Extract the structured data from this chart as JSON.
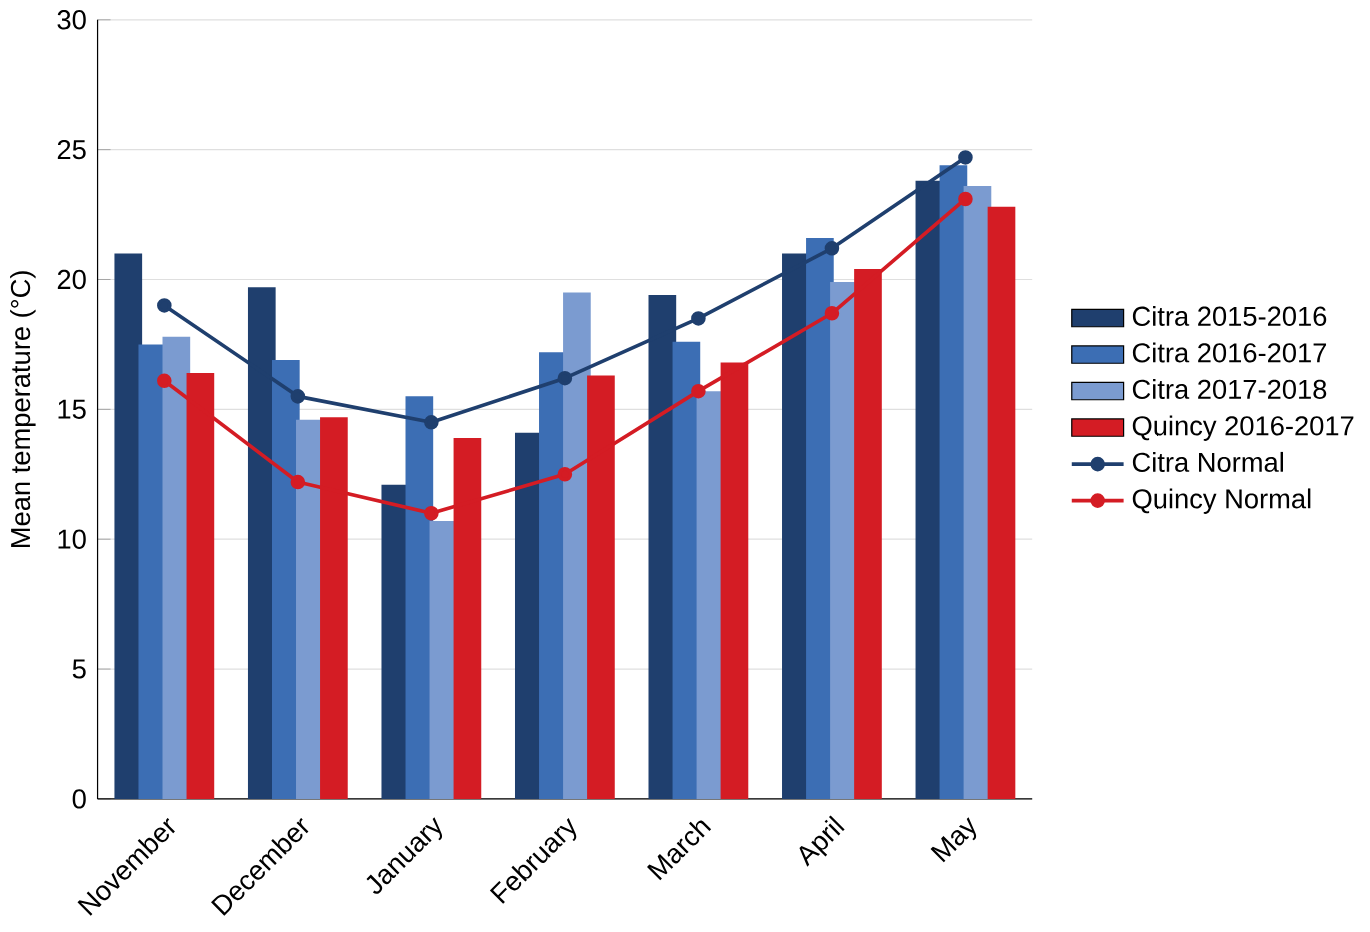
{
  "chart_data": {
    "type": "bar",
    "ylabel": "Mean temperature (°C)",
    "categories": [
      "November",
      "December",
      "January",
      "February",
      "March",
      "April",
      "May"
    ],
    "ylim": [
      0,
      30
    ],
    "yticks": [
      0,
      5,
      10,
      15,
      20,
      25,
      30
    ],
    "grid": "y",
    "legend": "right",
    "marker": "circle",
    "series": [
      {
        "name": "Citra 2015-2016",
        "color": "#1f3f6e",
        "values": [
          21.0,
          19.7,
          12.1,
          14.1,
          19.4,
          21.0,
          23.8
        ]
      },
      {
        "name": "Citra 2016-2017",
        "color": "#3c6eb4",
        "values": [
          17.5,
          16.9,
          15.5,
          17.2,
          17.6,
          21.6,
          24.4
        ]
      },
      {
        "name": "Citra 2017-2018",
        "color": "#7b9bd0",
        "values": [
          17.8,
          14.6,
          10.7,
          19.5,
          15.7,
          19.9,
          23.6
        ]
      },
      {
        "name": "Quincy 2016-2017",
        "color": "#d41c24",
        "values": [
          16.4,
          14.7,
          13.9,
          16.3,
          16.8,
          20.4,
          22.8
        ]
      },
      {
        "name": "Citra Normal",
        "type": "line",
        "color": "#1f3f6e",
        "values": [
          19.0,
          15.5,
          14.5,
          16.2,
          18.5,
          21.2,
          24.7
        ]
      },
      {
        "name": "Quincy Normal",
        "type": "line",
        "color": "#d41c24",
        "values": [
          16.1,
          12.2,
          11.0,
          12.5,
          15.7,
          18.7,
          23.1
        ]
      }
    ]
  }
}
